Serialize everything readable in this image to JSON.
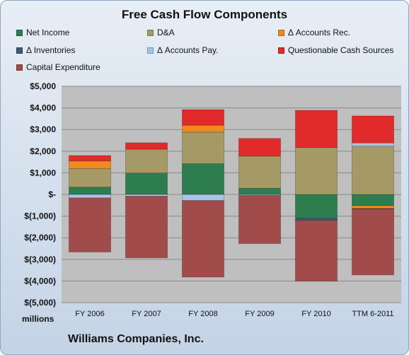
{
  "chart_data": {
    "type": "bar",
    "stacked": true,
    "title": "Free Cash Flow Components",
    "company": "Williams Companies, Inc.",
    "units_label": "millions",
    "categories": [
      "FY 2006",
      "FY 2007",
      "FY 2008",
      "FY 2009",
      "FY 2010",
      "TTM 6-2011"
    ],
    "ylim": [
      -5000,
      5000
    ],
    "y_ticks": [
      5000,
      4000,
      3000,
      2000,
      1000,
      0,
      -1000,
      -2000,
      -3000,
      -4000,
      -5000
    ],
    "y_tick_labels": [
      "$5,000",
      "$4,000",
      "$3,000",
      "$2,000",
      "$1,000",
      "$-",
      "$(1,000)",
      "$(2,000)",
      "$(3,000)",
      "$(4,000)",
      "$(5,000)"
    ],
    "grid": true,
    "legend_position": "top",
    "series": [
      {
        "name": "Net Income",
        "color": "#2e7d4f",
        "values": [
          340,
          990,
          1420,
          290,
          -1100,
          -520
        ]
      },
      {
        "name": "D&A",
        "color": "#a59a66",
        "values": [
          860,
          1100,
          1460,
          1480,
          2170,
          2230
        ]
      },
      {
        "name": "Δ Accounts Rec.",
        "color": "#ef8a1d",
        "values": [
          350,
          0,
          320,
          0,
          0,
          -130
        ]
      },
      {
        "name": "Δ Inventories",
        "color": "#3f5a78",
        "values": [
          0,
          0,
          0,
          0,
          -100,
          -20
        ]
      },
      {
        "name": "Δ Accounts Pay.",
        "color": "#a9c3e6",
        "values": [
          -160,
          -80,
          -280,
          -40,
          0,
          150
        ]
      },
      {
        "name": "Questionable Cash Sources",
        "color": "#e12a2a",
        "values": [
          250,
          300,
          720,
          820,
          1720,
          1250
        ]
      },
      {
        "name": "Capital Expenditure",
        "color": "#a24b4b",
        "values": [
          -2500,
          -2850,
          -3540,
          -2230,
          -2810,
          -3050
        ]
      }
    ]
  }
}
